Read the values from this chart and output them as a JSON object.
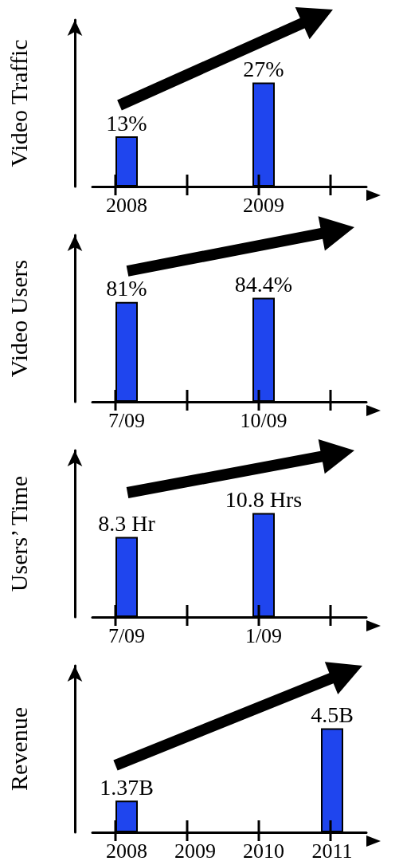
{
  "chart_data": [
    {
      "type": "bar",
      "ylabel": "Video Traffic",
      "categories": [
        "2008",
        null,
        "2009",
        null
      ],
      "values": [
        13,
        null,
        27,
        null
      ],
      "value_labels": [
        "13%",
        null,
        "27%",
        null
      ],
      "color": "#1f45ee",
      "tick_labels": "x"
    },
    {
      "type": "bar",
      "ylabel": "Video Users",
      "categories": [
        "7/09",
        null,
        "10/09",
        null
      ],
      "values": [
        81,
        null,
        84.4,
        null
      ],
      "value_labels": [
        "81%",
        null,
        "84.4%",
        null
      ],
      "color": "#1f45ee",
      "tick_labels": "x"
    },
    {
      "type": "bar",
      "ylabel": "Users’ Time",
      "categories": [
        "7/09",
        null,
        "1/09",
        null
      ],
      "values": [
        8.3,
        null,
        10.8,
        null
      ],
      "value_labels": [
        "8.3 Hr",
        null,
        "10.8 Hrs",
        null
      ],
      "color": "#1f45ee",
      "tick_labels": "x"
    },
    {
      "type": "bar",
      "ylabel": "Revenue",
      "categories": [
        "2008",
        "2009",
        "2010",
        "2011"
      ],
      "values": [
        1.37,
        null,
        null,
        4.5
      ],
      "value_labels": [
        "1.37B",
        null,
        null,
        "4.5B"
      ],
      "color": "#1f45ee",
      "tick_labels": "x"
    }
  ]
}
